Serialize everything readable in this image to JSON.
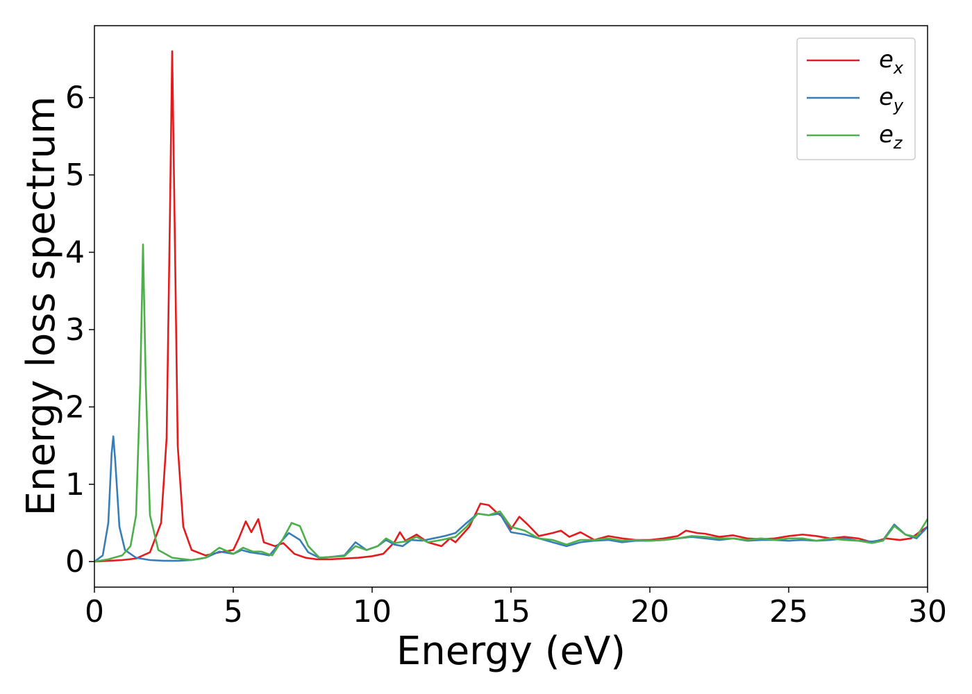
{
  "chart_data": {
    "type": "line",
    "title": "",
    "xlabel": "Energy (eV)",
    "ylabel": "Energy loss spectrum",
    "xlim": [
      0,
      30
    ],
    "ylim": [
      -0.33,
      6.93
    ],
    "xticks": [
      0,
      5,
      10,
      15,
      20,
      25,
      30
    ],
    "yticks": [
      0,
      1,
      2,
      3,
      4,
      5,
      6
    ],
    "grid": false,
    "legend_position": "top-right",
    "series": [
      {
        "name": "e_x",
        "label_base": "e",
        "label_sub": "x",
        "color": "#e41a1c",
        "points": [
          [
            0,
            0
          ],
          [
            0.5,
            0.01
          ],
          [
            1,
            0.02
          ],
          [
            1.5,
            0.04
          ],
          [
            2,
            0.12
          ],
          [
            2.4,
            0.5
          ],
          [
            2.6,
            1.6
          ],
          [
            2.72,
            4.5
          ],
          [
            2.8,
            6.6
          ],
          [
            2.88,
            4.6
          ],
          [
            3.0,
            1.5
          ],
          [
            3.2,
            0.45
          ],
          [
            3.5,
            0.15
          ],
          [
            4,
            0.08
          ],
          [
            4.5,
            0.12
          ],
          [
            5,
            0.15
          ],
          [
            5.2,
            0.3
          ],
          [
            5.45,
            0.52
          ],
          [
            5.65,
            0.38
          ],
          [
            5.9,
            0.55
          ],
          [
            6.1,
            0.25
          ],
          [
            6.5,
            0.2
          ],
          [
            6.8,
            0.24
          ],
          [
            7.2,
            0.1
          ],
          [
            7.6,
            0.05
          ],
          [
            8,
            0.03
          ],
          [
            8.5,
            0.03
          ],
          [
            9,
            0.04
          ],
          [
            9.5,
            0.05
          ],
          [
            10,
            0.07
          ],
          [
            10.4,
            0.1
          ],
          [
            10.8,
            0.25
          ],
          [
            11,
            0.38
          ],
          [
            11.2,
            0.27
          ],
          [
            11.6,
            0.35
          ],
          [
            12,
            0.25
          ],
          [
            12.5,
            0.2
          ],
          [
            12.8,
            0.3
          ],
          [
            13,
            0.25
          ],
          [
            13.5,
            0.45
          ],
          [
            13.9,
            0.75
          ],
          [
            14.2,
            0.73
          ],
          [
            14.5,
            0.63
          ],
          [
            14.8,
            0.55
          ],
          [
            15,
            0.42
          ],
          [
            15.3,
            0.58
          ],
          [
            15.6,
            0.48
          ],
          [
            16,
            0.33
          ],
          [
            16.5,
            0.37
          ],
          [
            16.8,
            0.4
          ],
          [
            17.1,
            0.32
          ],
          [
            17.5,
            0.38
          ],
          [
            18,
            0.28
          ],
          [
            18.5,
            0.33
          ],
          [
            19,
            0.3
          ],
          [
            19.5,
            0.28
          ],
          [
            20,
            0.28
          ],
          [
            20.5,
            0.3
          ],
          [
            21,
            0.33
          ],
          [
            21.3,
            0.4
          ],
          [
            21.7,
            0.37
          ],
          [
            22,
            0.36
          ],
          [
            22.5,
            0.32
          ],
          [
            23,
            0.34
          ],
          [
            23.5,
            0.3
          ],
          [
            24,
            0.29
          ],
          [
            24.5,
            0.3
          ],
          [
            25,
            0.33
          ],
          [
            25.5,
            0.35
          ],
          [
            26,
            0.33
          ],
          [
            26.5,
            0.3
          ],
          [
            27,
            0.32
          ],
          [
            27.5,
            0.3
          ],
          [
            28,
            0.25
          ],
          [
            28.5,
            0.3
          ],
          [
            29,
            0.28
          ],
          [
            29.4,
            0.3
          ],
          [
            29.7,
            0.38
          ],
          [
            30,
            0.45
          ]
        ]
      },
      {
        "name": "e_y",
        "label_base": "e",
        "label_sub": "y",
        "color": "#377eb8",
        "points": [
          [
            0,
            0
          ],
          [
            0.3,
            0.08
          ],
          [
            0.5,
            0.5
          ],
          [
            0.62,
            1.4
          ],
          [
            0.68,
            1.62
          ],
          [
            0.75,
            1.3
          ],
          [
            0.9,
            0.45
          ],
          [
            1.1,
            0.15
          ],
          [
            1.5,
            0.05
          ],
          [
            2,
            0.02
          ],
          [
            2.5,
            0.01
          ],
          [
            3,
            0.01
          ],
          [
            3.5,
            0.02
          ],
          [
            4,
            0.05
          ],
          [
            4.5,
            0.13
          ],
          [
            5,
            0.1
          ],
          [
            5.3,
            0.15
          ],
          [
            5.6,
            0.12
          ],
          [
            6,
            0.1
          ],
          [
            6.3,
            0.08
          ],
          [
            6.7,
            0.25
          ],
          [
            7,
            0.37
          ],
          [
            7.4,
            0.28
          ],
          [
            7.7,
            0.12
          ],
          [
            8.1,
            0.05
          ],
          [
            8.5,
            0.06
          ],
          [
            9,
            0.08
          ],
          [
            9.4,
            0.25
          ],
          [
            9.8,
            0.15
          ],
          [
            10.2,
            0.2
          ],
          [
            10.5,
            0.28
          ],
          [
            10.8,
            0.22
          ],
          [
            11.1,
            0.2
          ],
          [
            11.4,
            0.28
          ],
          [
            11.8,
            0.27
          ],
          [
            12.2,
            0.3
          ],
          [
            12.6,
            0.33
          ],
          [
            13,
            0.37
          ],
          [
            13.4,
            0.5
          ],
          [
            13.8,
            0.62
          ],
          [
            14.2,
            0.6
          ],
          [
            14.6,
            0.62
          ],
          [
            15,
            0.38
          ],
          [
            15.5,
            0.35
          ],
          [
            16,
            0.3
          ],
          [
            16.5,
            0.25
          ],
          [
            17,
            0.2
          ],
          [
            17.5,
            0.25
          ],
          [
            18,
            0.27
          ],
          [
            18.5,
            0.28
          ],
          [
            19,
            0.25
          ],
          [
            19.5,
            0.27
          ],
          [
            20,
            0.27
          ],
          [
            20.5,
            0.28
          ],
          [
            21,
            0.3
          ],
          [
            21.5,
            0.32
          ],
          [
            22,
            0.3
          ],
          [
            22.5,
            0.28
          ],
          [
            23,
            0.3
          ],
          [
            23.5,
            0.27
          ],
          [
            24,
            0.28
          ],
          [
            24.5,
            0.28
          ],
          [
            25,
            0.27
          ],
          [
            25.5,
            0.28
          ],
          [
            26,
            0.27
          ],
          [
            26.5,
            0.28
          ],
          [
            27,
            0.3
          ],
          [
            27.5,
            0.27
          ],
          [
            28,
            0.26
          ],
          [
            28.4,
            0.28
          ],
          [
            28.8,
            0.48
          ],
          [
            29.2,
            0.35
          ],
          [
            29.6,
            0.3
          ],
          [
            30,
            0.45
          ]
        ]
      },
      {
        "name": "e_z",
        "label_base": "e",
        "label_sub": "z",
        "color": "#4daf4a",
        "points": [
          [
            0,
            0
          ],
          [
            0.5,
            0.03
          ],
          [
            1,
            0.08
          ],
          [
            1.3,
            0.2
          ],
          [
            1.5,
            0.6
          ],
          [
            1.65,
            2.3
          ],
          [
            1.75,
            4.1
          ],
          [
            1.85,
            2.3
          ],
          [
            2,
            0.6
          ],
          [
            2.3,
            0.15
          ],
          [
            2.8,
            0.05
          ],
          [
            3.5,
            0.02
          ],
          [
            4,
            0.05
          ],
          [
            4.5,
            0.18
          ],
          [
            5,
            0.1
          ],
          [
            5.35,
            0.18
          ],
          [
            5.7,
            0.13
          ],
          [
            6,
            0.13
          ],
          [
            6.4,
            0.08
          ],
          [
            6.8,
            0.3
          ],
          [
            7.1,
            0.5
          ],
          [
            7.4,
            0.46
          ],
          [
            7.7,
            0.2
          ],
          [
            8.1,
            0.05
          ],
          [
            8.5,
            0.06
          ],
          [
            9,
            0.07
          ],
          [
            9.4,
            0.2
          ],
          [
            9.8,
            0.15
          ],
          [
            10.2,
            0.2
          ],
          [
            10.5,
            0.3
          ],
          [
            10.8,
            0.24
          ],
          [
            11.2,
            0.26
          ],
          [
            11.6,
            0.32
          ],
          [
            12,
            0.25
          ],
          [
            12.5,
            0.28
          ],
          [
            13,
            0.32
          ],
          [
            13.4,
            0.45
          ],
          [
            13.8,
            0.62
          ],
          [
            14.2,
            0.6
          ],
          [
            14.6,
            0.65
          ],
          [
            15,
            0.45
          ],
          [
            15.5,
            0.4
          ],
          [
            16,
            0.3
          ],
          [
            16.5,
            0.28
          ],
          [
            17,
            0.22
          ],
          [
            17.5,
            0.28
          ],
          [
            18,
            0.28
          ],
          [
            18.5,
            0.3
          ],
          [
            19,
            0.27
          ],
          [
            19.5,
            0.28
          ],
          [
            20,
            0.27
          ],
          [
            20.5,
            0.28
          ],
          [
            21,
            0.3
          ],
          [
            21.5,
            0.33
          ],
          [
            22,
            0.32
          ],
          [
            22.5,
            0.3
          ],
          [
            23,
            0.3
          ],
          [
            23.5,
            0.28
          ],
          [
            24,
            0.3
          ],
          [
            24.5,
            0.28
          ],
          [
            25,
            0.3
          ],
          [
            25.5,
            0.3
          ],
          [
            26,
            0.27
          ],
          [
            26.5,
            0.3
          ],
          [
            27,
            0.28
          ],
          [
            27.5,
            0.27
          ],
          [
            28,
            0.24
          ],
          [
            28.4,
            0.27
          ],
          [
            28.8,
            0.46
          ],
          [
            29.2,
            0.35
          ],
          [
            29.6,
            0.32
          ],
          [
            30,
            0.55
          ]
        ]
      }
    ]
  }
}
